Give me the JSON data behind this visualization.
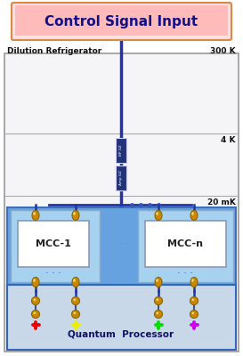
{
  "title": "Control Signal Input",
  "title_bg_inner": "#FFAAAA",
  "title_bg_outer": "#FFE0E0",
  "title_border": "#DD8844",
  "title_text_color": "#111188",
  "label_dilution": "Dilution Refrigerator",
  "label_300K": "300 K",
  "label_4K": "4 K",
  "label_20mK": "20 mK",
  "label_mcc1": "MCC-1",
  "label_mccn": "MCC-n",
  "label_qp": "Quantum  Processor",
  "bg_color": "#ffffff",
  "outer_rect_facecolor": "#F5F5F8",
  "outer_rect_edgecolor": "#999999",
  "line_h1_color": "#AAAAAA",
  "mcc_outer_bg": "#5599DD",
  "mcc_outer_edge": "#3366BB",
  "mcc1_bg": "#AAD4F0",
  "mcc1_edge": "#88AACC",
  "mccn_bg": "#AAD4F0",
  "mccn_edge": "#88AACC",
  "mcc_box_face": "#FFFFFF",
  "mcc_box_edge": "#8899BB",
  "qp_face": "#C8D8E8",
  "qp_edge": "#3366BB",
  "line_color": "#2233AA",
  "dots_color": "#3355BB",
  "att_color": "#223377",
  "gold_color": "#CC8800",
  "gold_edge": "#886600",
  "cross_colors": [
    "#EE0000",
    "#EEEE00",
    "#00DD00",
    "#CC00EE"
  ]
}
